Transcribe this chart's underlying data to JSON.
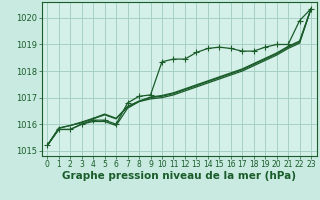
{
  "background_color": "#c8eae0",
  "plot_bg_color": "#d4f0e8",
  "grid_color": "#a0ccc0",
  "line_color": "#1a5c2a",
  "marker_color": "#1a5c2a",
  "xlabel": "Graphe pression niveau de la mer (hPa)",
  "xlabel_fontsize": 7.5,
  "ylim": [
    1014.8,
    1020.6
  ],
  "xlim": [
    -0.5,
    23.5
  ],
  "yticks": [
    1015,
    1016,
    1017,
    1018,
    1019,
    1020
  ],
  "xticks": [
    0,
    1,
    2,
    3,
    4,
    5,
    6,
    7,
    8,
    9,
    10,
    11,
    12,
    13,
    14,
    15,
    16,
    17,
    18,
    19,
    20,
    21,
    22,
    23
  ],
  "series1": [
    1015.2,
    1015.8,
    1015.8,
    1016.0,
    1016.15,
    1016.15,
    1016.0,
    1016.8,
    1017.05,
    1017.1,
    1018.35,
    1018.45,
    1018.45,
    1018.7,
    1018.85,
    1018.9,
    1018.85,
    1018.75,
    1018.75,
    1018.9,
    1019.0,
    1019.0,
    1019.9,
    1020.35
  ],
  "series2": [
    1015.2,
    1015.85,
    1015.95,
    1016.05,
    1016.2,
    1016.35,
    1016.2,
    1016.65,
    1016.85,
    1017.0,
    1017.05,
    1017.15,
    1017.3,
    1017.45,
    1017.6,
    1017.75,
    1017.9,
    1018.05,
    1018.25,
    1018.45,
    1018.65,
    1018.9,
    1019.1,
    1020.35
  ],
  "series3": [
    1015.2,
    1015.85,
    1015.95,
    1016.08,
    1016.22,
    1016.38,
    1016.22,
    1016.67,
    1016.87,
    1017.02,
    1017.08,
    1017.18,
    1017.33,
    1017.48,
    1017.63,
    1017.78,
    1017.93,
    1018.08,
    1018.28,
    1018.48,
    1018.68,
    1018.93,
    1019.13,
    1020.35
  ],
  "series4": [
    1015.2,
    1015.8,
    1015.8,
    1016.0,
    1016.1,
    1016.1,
    1015.95,
    1016.6,
    1016.85,
    1016.95,
    1017.0,
    1017.1,
    1017.25,
    1017.4,
    1017.55,
    1017.7,
    1017.85,
    1018.0,
    1018.2,
    1018.4,
    1018.6,
    1018.85,
    1019.05,
    1020.35
  ]
}
